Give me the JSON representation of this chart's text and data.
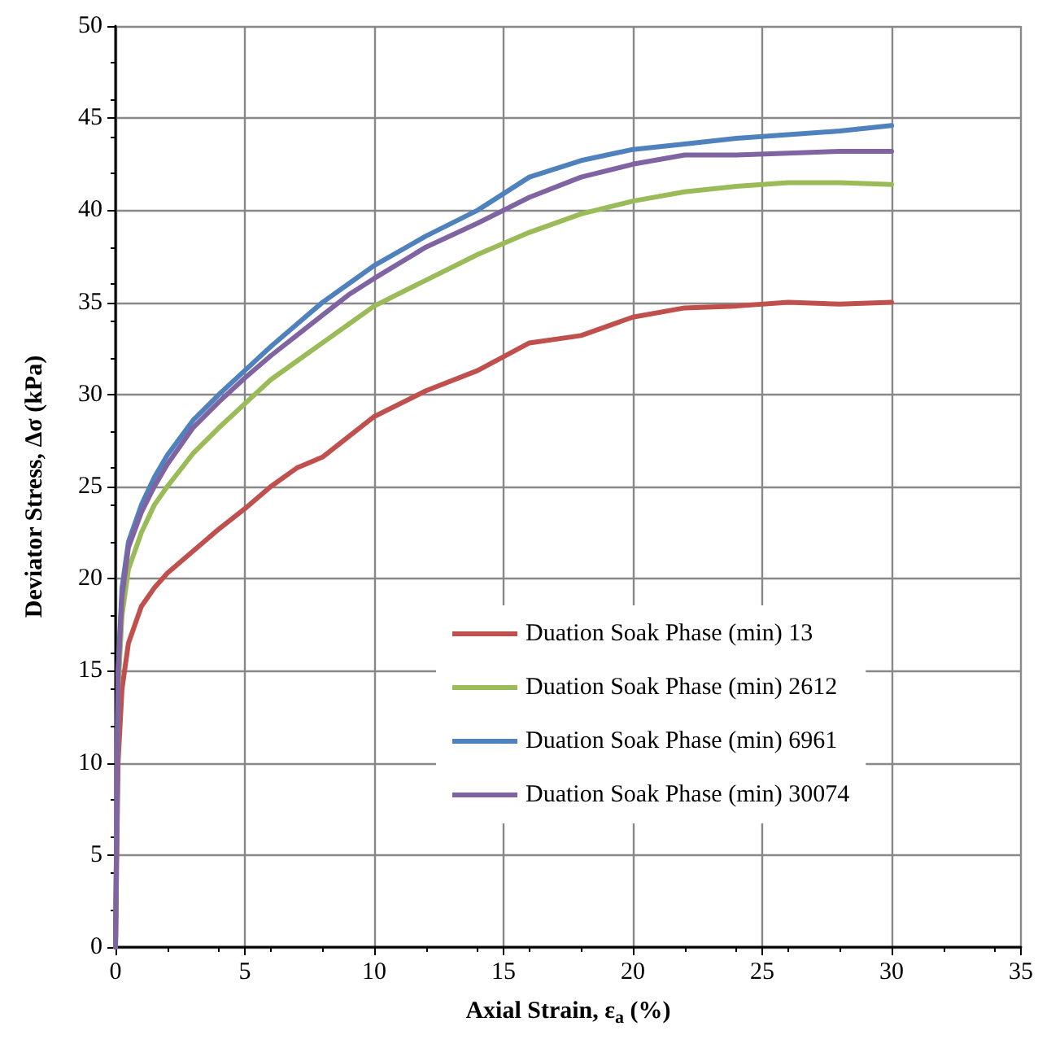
{
  "chart_data": {
    "type": "line",
    "xlabel": "Axial Strain, ε$_{a}$ (%)",
    "ylabel": "Deviator Stress, Δσ (kPa)",
    "x": [
      0,
      0.1,
      0.25,
      0.5,
      1,
      1.5,
      2,
      3,
      4,
      5,
      6,
      7,
      8,
      9,
      10,
      12,
      14,
      16,
      18,
      20,
      22,
      24,
      26,
      28,
      30
    ],
    "series": [
      {
        "name": "Duation Soak Phase (min) 13",
        "color": "#c0504d",
        "values": [
          0,
          10,
          14,
          16.5,
          18.5,
          19.5,
          20.3,
          21.5,
          22.7,
          23.8,
          25,
          26,
          26.6,
          27.7,
          28.8,
          30.2,
          31.3,
          32.8,
          33.2,
          34.2,
          34.7,
          34.8,
          35,
          34.9,
          35
        ]
      },
      {
        "name": "Duation Soak Phase (min) 2612",
        "color": "#9bbb59",
        "values": [
          0,
          14,
          18,
          20.5,
          22.5,
          24,
          25,
          26.8,
          28.2,
          29.5,
          30.8,
          31.8,
          32.8,
          33.8,
          34.8,
          36.2,
          37.6,
          38.8,
          39.8,
          40.5,
          41,
          41.3,
          41.5,
          41.5,
          41.4
        ]
      },
      {
        "name": "Duation Soak Phase (min) 6961",
        "color": "#4f81bd",
        "values": [
          0,
          15,
          19.5,
          22,
          24,
          25.5,
          26.7,
          28.6,
          30,
          31.3,
          32.6,
          33.8,
          35,
          36,
          37,
          38.6,
          40,
          41.8,
          42.7,
          43.3,
          43.6,
          43.9,
          44.1,
          44.3,
          44.6
        ]
      },
      {
        "name": "Duation Soak Phase (min) 30074",
        "color": "#8064a2",
        "values": [
          0,
          15,
          19,
          21.7,
          23.6,
          25,
          26.2,
          28.2,
          29.6,
          30.9,
          32.1,
          33.2,
          34.3,
          35.4,
          36.3,
          38,
          39.3,
          40.7,
          41.8,
          42.5,
          43,
          43,
          43.1,
          43.2,
          43.2
        ]
      }
    ],
    "xlim": [
      0,
      35
    ],
    "xticks": [
      0,
      5,
      10,
      15,
      20,
      25,
      30,
      35
    ],
    "ylim": [
      0,
      50
    ],
    "yticks": [
      0,
      5,
      10,
      15,
      20,
      25,
      30,
      35,
      40,
      45,
      50
    ],
    "grid": true,
    "legend": "bottom right",
    "marker": "none",
    "line_style": "solid"
  }
}
